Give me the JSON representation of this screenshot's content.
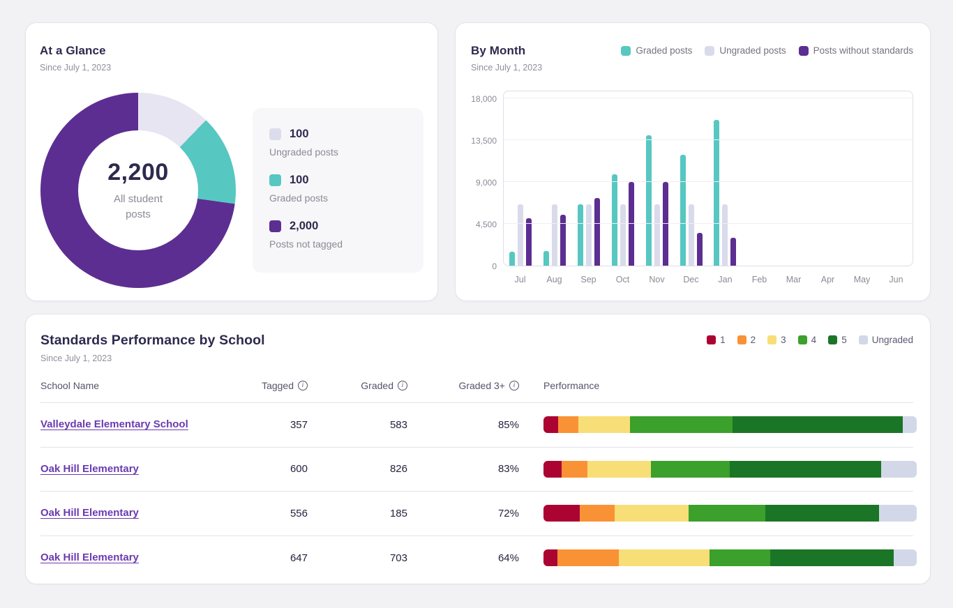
{
  "glance": {
    "title": "At a Glance",
    "subtitle": "Since July 1, 2023",
    "center_value": "2,200",
    "center_label": "All student posts",
    "legend": [
      {
        "value": "100",
        "label": "Ungraded posts",
        "color": "#DCDDEC"
      },
      {
        "value": "100",
        "label": "Graded posts",
        "color": "#57C7C2"
      },
      {
        "value": "2,000",
        "label": "Posts not tagged",
        "color": "#5C2E91"
      }
    ]
  },
  "by_month": {
    "title": "By Month",
    "subtitle": "Since July 1, 2023",
    "legend": [
      {
        "label": "Graded posts",
        "color": "#57C7C2"
      },
      {
        "label": "Ungraded posts",
        "color": "#D9DBEB"
      },
      {
        "label": "Posts without standards",
        "color": "#5C2E91"
      }
    ]
  },
  "standards": {
    "title": "Standards Performance by School",
    "subtitle": "Since July 1, 2023",
    "columns": [
      "School Name",
      "Tagged",
      "Graded",
      "Graded 3+",
      "Performance"
    ],
    "rating_legend": [
      {
        "label": "1",
        "color": "#AB0433"
      },
      {
        "label": "2",
        "color": "#F99235"
      },
      {
        "label": "3",
        "color": "#F7DE77"
      },
      {
        "label": "4",
        "color": "#3BA02C"
      },
      {
        "label": "5",
        "color": "#1B7526"
      },
      {
        "label": "Ungraded",
        "color": "#D3D8E8"
      }
    ]
  },
  "chart_data": [
    {
      "type": "pie",
      "title": "At a Glance",
      "total": 2200,
      "total_label": "All student posts",
      "slices": [
        {
          "label": "Ungraded posts",
          "value": 100,
          "color": "#E6E5F1",
          "sweep_deg": 44
        },
        {
          "label": "Graded posts",
          "value": 100,
          "color": "#57C7C2",
          "sweep_deg": 54
        },
        {
          "label": "Posts not tagged",
          "value": 2000,
          "color": "#5C2E91",
          "sweep_deg": 262
        }
      ]
    },
    {
      "type": "bar",
      "title": "By Month",
      "categories": [
        "Jul",
        "Aug",
        "Sep",
        "Oct",
        "Nov",
        "Dec",
        "Jan",
        "Feb",
        "Mar",
        "Apr",
        "May",
        "Jun"
      ],
      "series": [
        {
          "name": "Graded posts",
          "color": "#57C7C2",
          "values": [
            1500,
            1550,
            6600,
            9800,
            14000,
            11900,
            15700,
            0,
            0,
            0,
            0,
            0
          ]
        },
        {
          "name": "Ungraded posts",
          "color": "#D9DBEB",
          "values": [
            6600,
            6600,
            6600,
            6600,
            6600,
            6600,
            6600,
            0,
            0,
            0,
            0,
            0
          ]
        },
        {
          "name": "Posts without standards",
          "color": "#5C2E91",
          "values": [
            5100,
            5500,
            7300,
            9000,
            9000,
            3500,
            3000,
            0,
            0,
            0,
            0,
            0
          ]
        }
      ],
      "ylim": [
        0,
        18000
      ],
      "yticks": [
        0,
        4500,
        9000,
        13500,
        18000
      ],
      "ytick_labels": [
        "0",
        "4,500",
        "9,000",
        "13,500",
        "18,000"
      ],
      "grid": true,
      "legend_position": "top-right"
    },
    {
      "type": "table",
      "title": "Standards Performance by School",
      "segment_order": [
        "1",
        "2",
        "3",
        "4",
        "5",
        "Ungraded"
      ],
      "rows": [
        {
          "school": "Valleydale Elementary School",
          "tagged": "357",
          "graded": "583",
          "graded_3plus": "85%",
          "performance_pct": [
            3.9,
            5.4,
            13.8,
            27.5,
            45.6,
            3.8
          ]
        },
        {
          "school": "Oak Hill Elementary",
          "tagged": "600",
          "graded": "826",
          "graded_3plus": "83%",
          "performance_pct": [
            4.9,
            6.9,
            17.0,
            21.1,
            40.5,
            9.6
          ]
        },
        {
          "school": "Oak Hill Elementary",
          "tagged": "556",
          "graded": "185",
          "graded_3plus": "72%",
          "performance_pct": [
            9.7,
            9.3,
            19.8,
            20.6,
            30.5,
            10.1
          ]
        },
        {
          "school": "Oak Hill Elementary",
          "tagged": "647",
          "graded": "703",
          "graded_3plus": "64%",
          "performance_pct": [
            3.7,
            16.4,
            24.3,
            16.3,
            33.1,
            6.2
          ]
        }
      ]
    }
  ]
}
